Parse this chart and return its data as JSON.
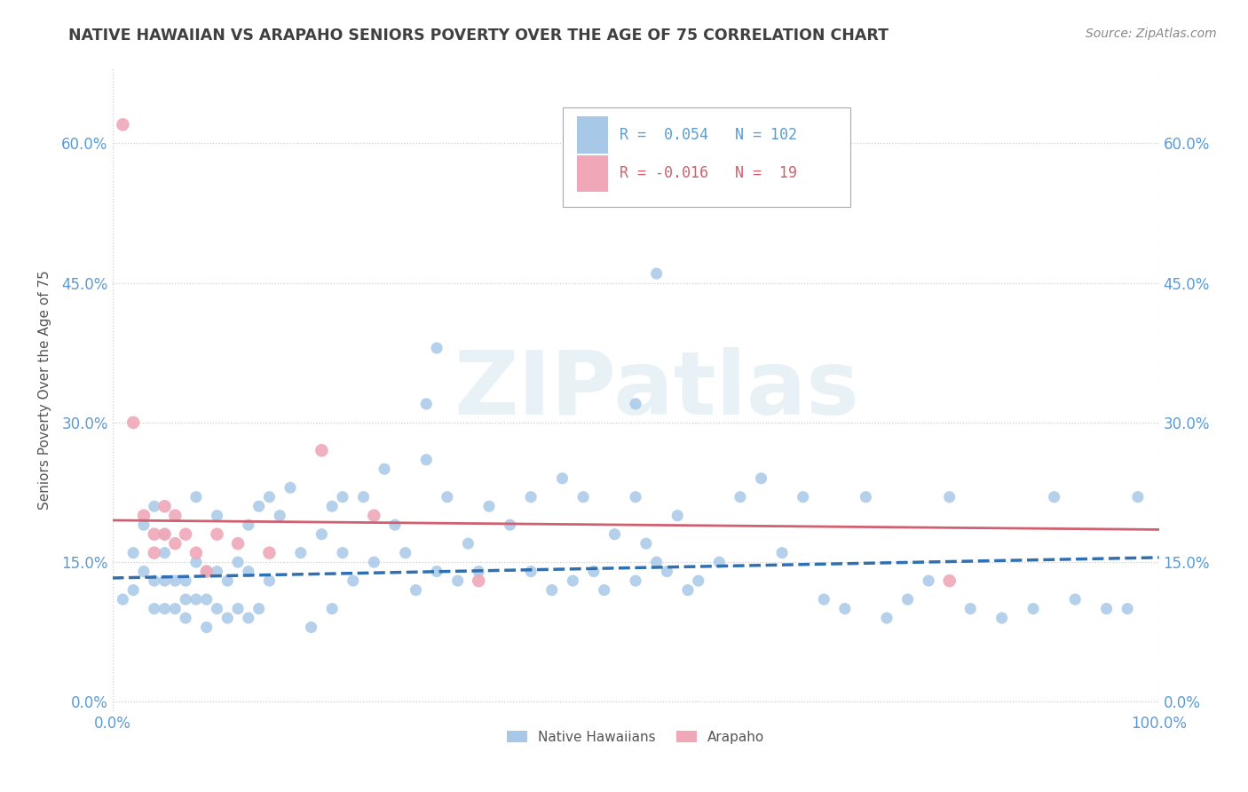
{
  "title": "NATIVE HAWAIIAN VS ARAPAHO SENIORS POVERTY OVER THE AGE OF 75 CORRELATION CHART",
  "source": "Source: ZipAtlas.com",
  "ylabel": "Seniors Poverty Over the Age of 75",
  "background_color": "#ffffff",
  "watermark": "ZIPatlas",
  "native_hawaiian_color": "#a8c8e8",
  "arapaho_color": "#f0a8b8",
  "native_hawaiian_line_color": "#3070b0",
  "arapaho_line_color": "#d06070",
  "R_nh": 0.054,
  "N_nh": 102,
  "R_ar": -0.016,
  "N_ar": 19,
  "xmin": 0.0,
  "xmax": 1.0,
  "ymin": -0.01,
  "ymax": 0.68,
  "yticks": [
    0.0,
    0.15,
    0.3,
    0.45,
    0.6
  ],
  "xticks": [
    0.0,
    1.0
  ],
  "grid_color": "#cccccc",
  "title_color": "#404040",
  "tick_color": "#5b9bd5",
  "native_hawaiian_x": [
    0.01,
    0.02,
    0.02,
    0.03,
    0.03,
    0.04,
    0.04,
    0.04,
    0.05,
    0.05,
    0.05,
    0.05,
    0.06,
    0.06,
    0.07,
    0.07,
    0.07,
    0.08,
    0.08,
    0.08,
    0.09,
    0.09,
    0.09,
    0.1,
    0.1,
    0.1,
    0.11,
    0.11,
    0.12,
    0.12,
    0.13,
    0.13,
    0.13,
    0.14,
    0.14,
    0.15,
    0.15,
    0.16,
    0.17,
    0.18,
    0.19,
    0.2,
    0.21,
    0.21,
    0.22,
    0.22,
    0.23,
    0.24,
    0.25,
    0.26,
    0.27,
    0.28,
    0.29,
    0.3,
    0.31,
    0.32,
    0.33,
    0.34,
    0.35,
    0.36,
    0.38,
    0.4,
    0.4,
    0.42,
    0.43,
    0.44,
    0.45,
    0.46,
    0.47,
    0.48,
    0.5,
    0.5,
    0.51,
    0.52,
    0.53,
    0.54,
    0.55,
    0.56,
    0.58,
    0.6,
    0.62,
    0.64,
    0.66,
    0.68,
    0.7,
    0.72,
    0.74,
    0.76,
    0.78,
    0.8,
    0.82,
    0.85,
    0.88,
    0.9,
    0.92,
    0.95,
    0.97,
    0.98,
    0.3,
    0.31,
    0.5,
    0.52
  ],
  "native_hawaiian_y": [
    0.11,
    0.16,
    0.12,
    0.19,
    0.14,
    0.21,
    0.13,
    0.1,
    0.16,
    0.18,
    0.13,
    0.1,
    0.13,
    0.1,
    0.13,
    0.11,
    0.09,
    0.22,
    0.15,
    0.11,
    0.14,
    0.11,
    0.08,
    0.2,
    0.14,
    0.1,
    0.13,
    0.09,
    0.15,
    0.1,
    0.19,
    0.14,
    0.09,
    0.21,
    0.1,
    0.22,
    0.13,
    0.2,
    0.23,
    0.16,
    0.08,
    0.18,
    0.21,
    0.1,
    0.22,
    0.16,
    0.13,
    0.22,
    0.15,
    0.25,
    0.19,
    0.16,
    0.12,
    0.26,
    0.14,
    0.22,
    0.13,
    0.17,
    0.14,
    0.21,
    0.19,
    0.22,
    0.14,
    0.12,
    0.24,
    0.13,
    0.22,
    0.14,
    0.12,
    0.18,
    0.22,
    0.13,
    0.17,
    0.15,
    0.14,
    0.2,
    0.12,
    0.13,
    0.15,
    0.22,
    0.24,
    0.16,
    0.22,
    0.11,
    0.1,
    0.22,
    0.09,
    0.11,
    0.13,
    0.22,
    0.1,
    0.09,
    0.1,
    0.22,
    0.11,
    0.1,
    0.1,
    0.22,
    0.32,
    0.38,
    0.32,
    0.46
  ],
  "arapaho_x": [
    0.01,
    0.02,
    0.03,
    0.04,
    0.04,
    0.05,
    0.05,
    0.06,
    0.06,
    0.07,
    0.08,
    0.09,
    0.1,
    0.12,
    0.15,
    0.2,
    0.25,
    0.35,
    0.8
  ],
  "arapaho_y": [
    0.62,
    0.3,
    0.2,
    0.18,
    0.16,
    0.21,
    0.18,
    0.2,
    0.17,
    0.18,
    0.16,
    0.14,
    0.18,
    0.17,
    0.16,
    0.27,
    0.2,
    0.13,
    0.13
  ]
}
